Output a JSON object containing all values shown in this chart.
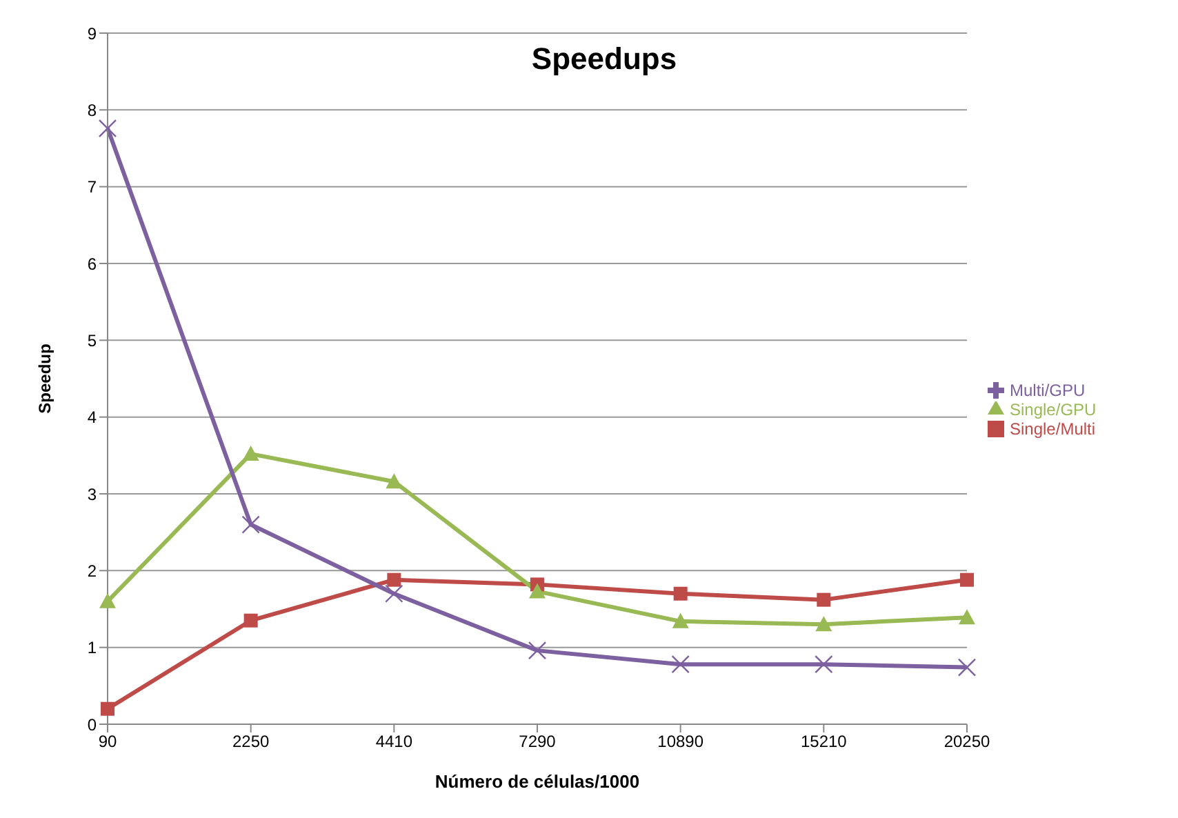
{
  "chart_data": {
    "type": "line",
    "title": "Speedups",
    "xlabel": "Número de células/1000",
    "ylabel": "Speedup",
    "categories": [
      "90",
      "2250",
      "4410",
      "7290",
      "10890",
      "15210",
      "20250"
    ],
    "series": [
      {
        "name": "Single/Multi",
        "color": "#be4b48",
        "marker": "square",
        "values": [
          0.2,
          1.35,
          1.88,
          1.82,
          1.7,
          1.62,
          1.88
        ]
      },
      {
        "name": "Single/GPU",
        "color": "#98b954",
        "marker": "triangle",
        "values": [
          1.6,
          3.52,
          3.16,
          1.73,
          1.34,
          1.3,
          1.39
        ]
      },
      {
        "name": "Multi/GPU",
        "color": "#7d60a0",
        "marker": "cross",
        "values": [
          7.76,
          2.6,
          1.7,
          0.96,
          0.78,
          0.78,
          0.74
        ]
      }
    ],
    "ylim": [
      0,
      9
    ],
    "yticks": [
      0,
      1,
      2,
      3,
      4,
      5,
      6,
      7,
      8,
      9
    ],
    "grid": "y",
    "legend": "right"
  }
}
